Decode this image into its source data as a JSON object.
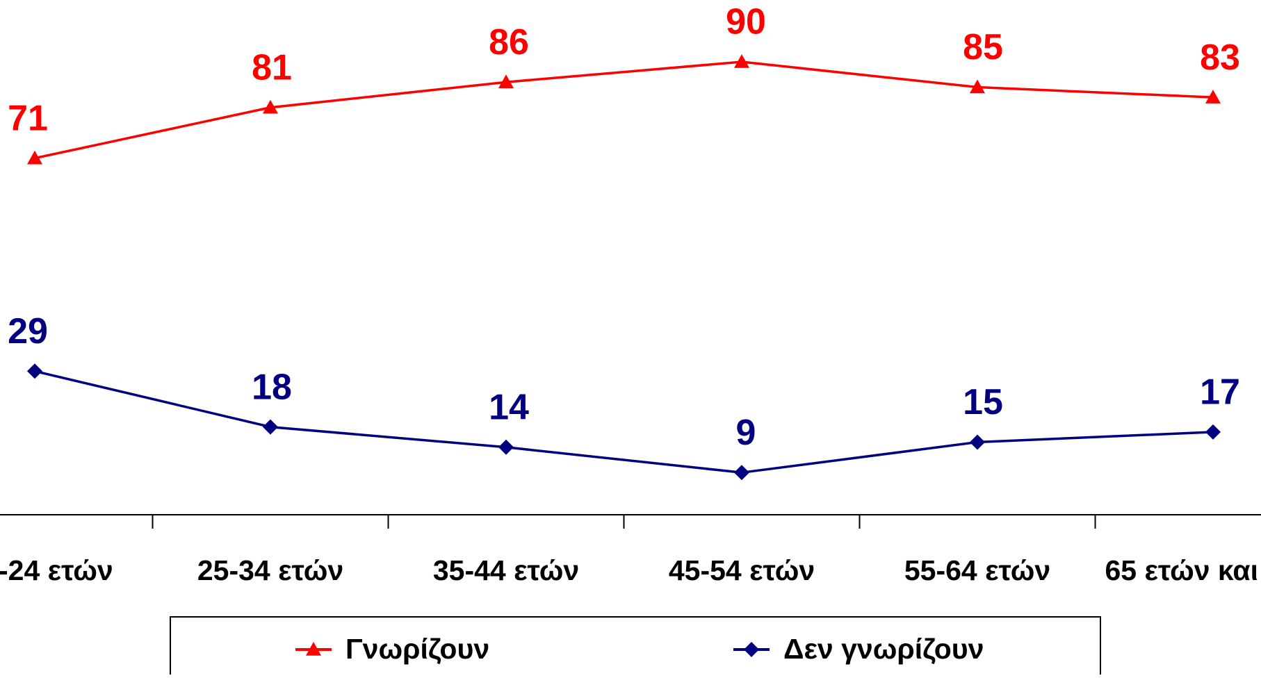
{
  "chart_data": {
    "type": "line",
    "categories": [
      "-24 ετών",
      "25-34 ετών",
      "35-44 ετών",
      "45-54 ετών",
      "55-64 ετών",
      "65 ετών και"
    ],
    "series": [
      {
        "name": "Γνωρίζουν",
        "color": "#ff0000",
        "marker": "triangle",
        "values": [
          71,
          81,
          86,
          90,
          85,
          83
        ]
      },
      {
        "name": "Δεν γνωρίζουν",
        "color": "#000080",
        "marker": "diamond",
        "values": [
          29,
          18,
          14,
          9,
          15,
          17
        ]
      }
    ],
    "ylim": [
      0,
      100
    ]
  }
}
